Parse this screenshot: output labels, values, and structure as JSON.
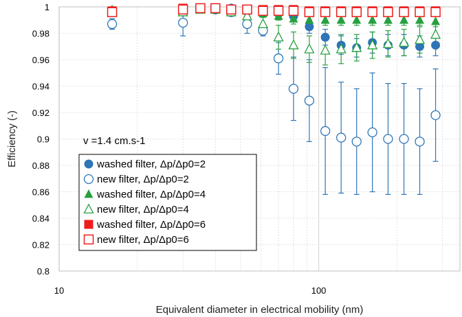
{
  "chart_data": {
    "type": "scatter",
    "xlabel": "Equivalent diameter in electrical mobility (nm)",
    "ylabel": "Efficiency (-)",
    "x_scale": "log",
    "xlim": [
      10,
      350
    ],
    "ylim": [
      0.8,
      1.0
    ],
    "x_ticks": [
      10,
      100
    ],
    "y_ticks": [
      0.8,
      0.82,
      0.84,
      0.86,
      0.88,
      0.9,
      0.92,
      0.94,
      0.96,
      0.98,
      1
    ],
    "grid": "on",
    "annotation": "v =1.4 cm.s-1",
    "legend_position": "lower-left",
    "series": [
      {
        "name": "washed filter, Δp/Δp0=2",
        "color": "#2e75b6",
        "marker": "circle",
        "filled": true,
        "x": [
          16,
          30,
          35,
          40,
          46,
          53,
          61,
          70,
          80,
          92,
          106,
          122,
          140,
          161,
          185,
          213,
          245,
          282
        ],
        "y": [
          0.987,
          0.996,
          0.999,
          0.999,
          0.999,
          0.998,
          0.997,
          0.995,
          0.993,
          0.985,
          0.977,
          0.971,
          0.969,
          0.973,
          0.971,
          0.971,
          0.97,
          0.971
        ],
        "err": [
          0.004,
          0.002,
          0.001,
          0.001,
          0.001,
          0.001,
          0.002,
          0.003,
          0.003,
          0.005,
          0.006,
          0.007,
          0.007,
          0.008,
          0.008,
          0.008,
          0.008,
          0.008
        ]
      },
      {
        "name": "new filter, Δp/Δp0=2",
        "color": "#2e75b6",
        "marker": "circle",
        "filled": false,
        "x": [
          16,
          30,
          35,
          40,
          46,
          53,
          61,
          70,
          80,
          92,
          106,
          122,
          140,
          161,
          185,
          213,
          245,
          282
        ],
        "y": [
          0.987,
          0.988,
          0.999,
          0.998,
          0.996,
          0.987,
          0.982,
          0.961,
          0.938,
          0.929,
          0.906,
          0.901,
          0.898,
          0.905,
          0.9,
          0.9,
          0.898,
          0.918
        ],
        "err": [
          0.003,
          0.01,
          0.001,
          0.002,
          0.003,
          0.007,
          0.004,
          0.012,
          0.024,
          0.031,
          0.048,
          0.042,
          0.04,
          0.045,
          0.042,
          0.042,
          0.04,
          0.035
        ]
      },
      {
        "name": "washed filter, Δp/Δp0=4",
        "color": "#27a03f",
        "marker": "triangle",
        "filled": true,
        "x": [
          16,
          30,
          35,
          40,
          46,
          53,
          61,
          70,
          80,
          92,
          106,
          122,
          140,
          161,
          185,
          213,
          245,
          282
        ],
        "y": [
          0.998,
          0.998,
          0.999,
          0.999,
          0.998,
          0.997,
          0.995,
          0.993,
          0.991,
          0.99,
          0.99,
          0.99,
          0.99,
          0.99,
          0.99,
          0.99,
          0.99,
          0.989
        ],
        "err": [
          0.002,
          0.001,
          0.001,
          0.001,
          0.001,
          0.002,
          0.003,
          0.003,
          0.004,
          0.004,
          0.004,
          0.004,
          0.004,
          0.004,
          0.004,
          0.004,
          0.004,
          0.004
        ]
      },
      {
        "name": "new filter, Δp/Δp0=4",
        "color": "#27a03f",
        "marker": "triangle",
        "filled": false,
        "x": [
          16,
          30,
          35,
          40,
          46,
          53,
          61,
          70,
          80,
          92,
          106,
          122,
          140,
          161,
          185,
          213,
          245,
          282
        ],
        "y": [
          0.997,
          0.996,
          0.998,
          0.998,
          0.996,
          0.993,
          0.987,
          0.977,
          0.971,
          0.968,
          0.967,
          0.968,
          0.969,
          0.971,
          0.972,
          0.973,
          0.975,
          0.979
        ],
        "err": [
          0.002,
          0.002,
          0.001,
          0.001,
          0.002,
          0.004,
          0.006,
          0.009,
          0.01,
          0.01,
          0.011,
          0.011,
          0.01,
          0.01,
          0.01,
          0.01,
          0.01,
          0.009
        ]
      },
      {
        "name": "washed filter, Δp/Δp0=6",
        "color": "#ee1c1c",
        "marker": "square",
        "filled": true,
        "x": [
          16,
          30,
          35,
          40,
          46,
          53,
          61,
          70,
          80,
          92,
          106,
          122,
          140,
          161,
          185,
          213,
          245,
          282
        ],
        "y": [
          0.997,
          0.999,
          0.999,
          0.999,
          0.998,
          0.998,
          0.998,
          0.998,
          0.998,
          0.997,
          0.997,
          0.997,
          0.997,
          0.997,
          0.997,
          0.997,
          0.997,
          0.997
        ],
        "err": [
          0.001,
          0.001,
          0.001,
          0.001,
          0.001,
          0.001,
          0.001,
          0.001,
          0.001,
          0.001,
          0.001,
          0.001,
          0.001,
          0.001,
          0.001,
          0.001,
          0.001,
          0.001
        ]
      },
      {
        "name": "new filter, Δp/Δp0=6",
        "color": "#ee1c1c",
        "marker": "square",
        "filled": false,
        "x": [
          16,
          30,
          35,
          40,
          46,
          53,
          61,
          70,
          80,
          92,
          106,
          122,
          140,
          161,
          185,
          213,
          245,
          282
        ],
        "y": [
          0.996,
          0.998,
          0.999,
          0.999,
          0.998,
          0.998,
          0.997,
          0.997,
          0.997,
          0.996,
          0.996,
          0.996,
          0.996,
          0.996,
          0.996,
          0.996,
          0.996,
          0.996
        ],
        "err": [
          0.001,
          0.001,
          0.001,
          0.001,
          0.001,
          0.001,
          0.001,
          0.001,
          0.001,
          0.001,
          0.001,
          0.001,
          0.001,
          0.001,
          0.001,
          0.001,
          0.001,
          0.001
        ]
      }
    ]
  }
}
